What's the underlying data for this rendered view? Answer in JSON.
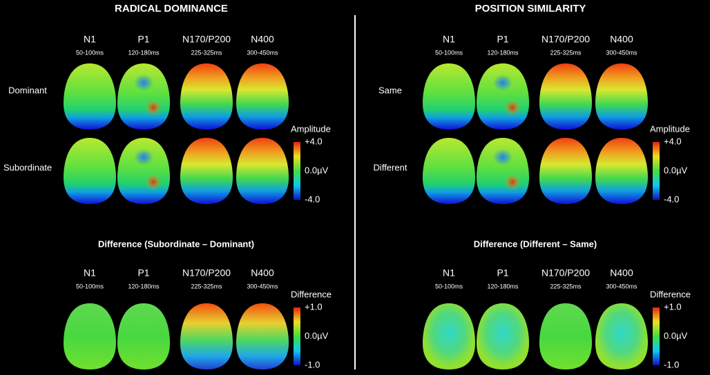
{
  "panels": [
    {
      "title": "RADICAL DOMINANCE",
      "components": [
        {
          "name": "N1",
          "window": "50-100ms"
        },
        {
          "name": "P1",
          "window": "120-180ms"
        },
        {
          "name": "N170/P200",
          "window": "225-325ms"
        },
        {
          "name": "N400",
          "window": "300-450ms"
        }
      ],
      "conditions": [
        "Dominant",
        "Subordinate"
      ],
      "amplitude_scale": {
        "title": "Amplitude",
        "labels": [
          "+4.0",
          "0.0µV",
          "-4.0"
        ]
      },
      "difference_title": "Difference (Subordinate – Dominant)",
      "difference_scale": {
        "title": "Difference",
        "labels": [
          "+1.0",
          "0.0µV",
          "-1.0"
        ]
      }
    },
    {
      "title": "POSITION SIMILARITY",
      "components": [
        {
          "name": "N1",
          "window": "50-100ms"
        },
        {
          "name": "P1",
          "window": "120-180ms"
        },
        {
          "name": "N170/P200",
          "window": "225-325ms"
        },
        {
          "name": "N400",
          "window": "300-450ms"
        }
      ],
      "conditions": [
        "Same",
        "Different"
      ],
      "amplitude_scale": {
        "title": "Amplitude",
        "labels": [
          "+4.0",
          "0.0µV",
          "-4.0"
        ]
      },
      "difference_title": "Difference (Different – Same)",
      "difference_scale": {
        "title": "Difference",
        "labels": [
          "+1.0",
          "0.0µV",
          "-1.0"
        ]
      }
    }
  ]
}
